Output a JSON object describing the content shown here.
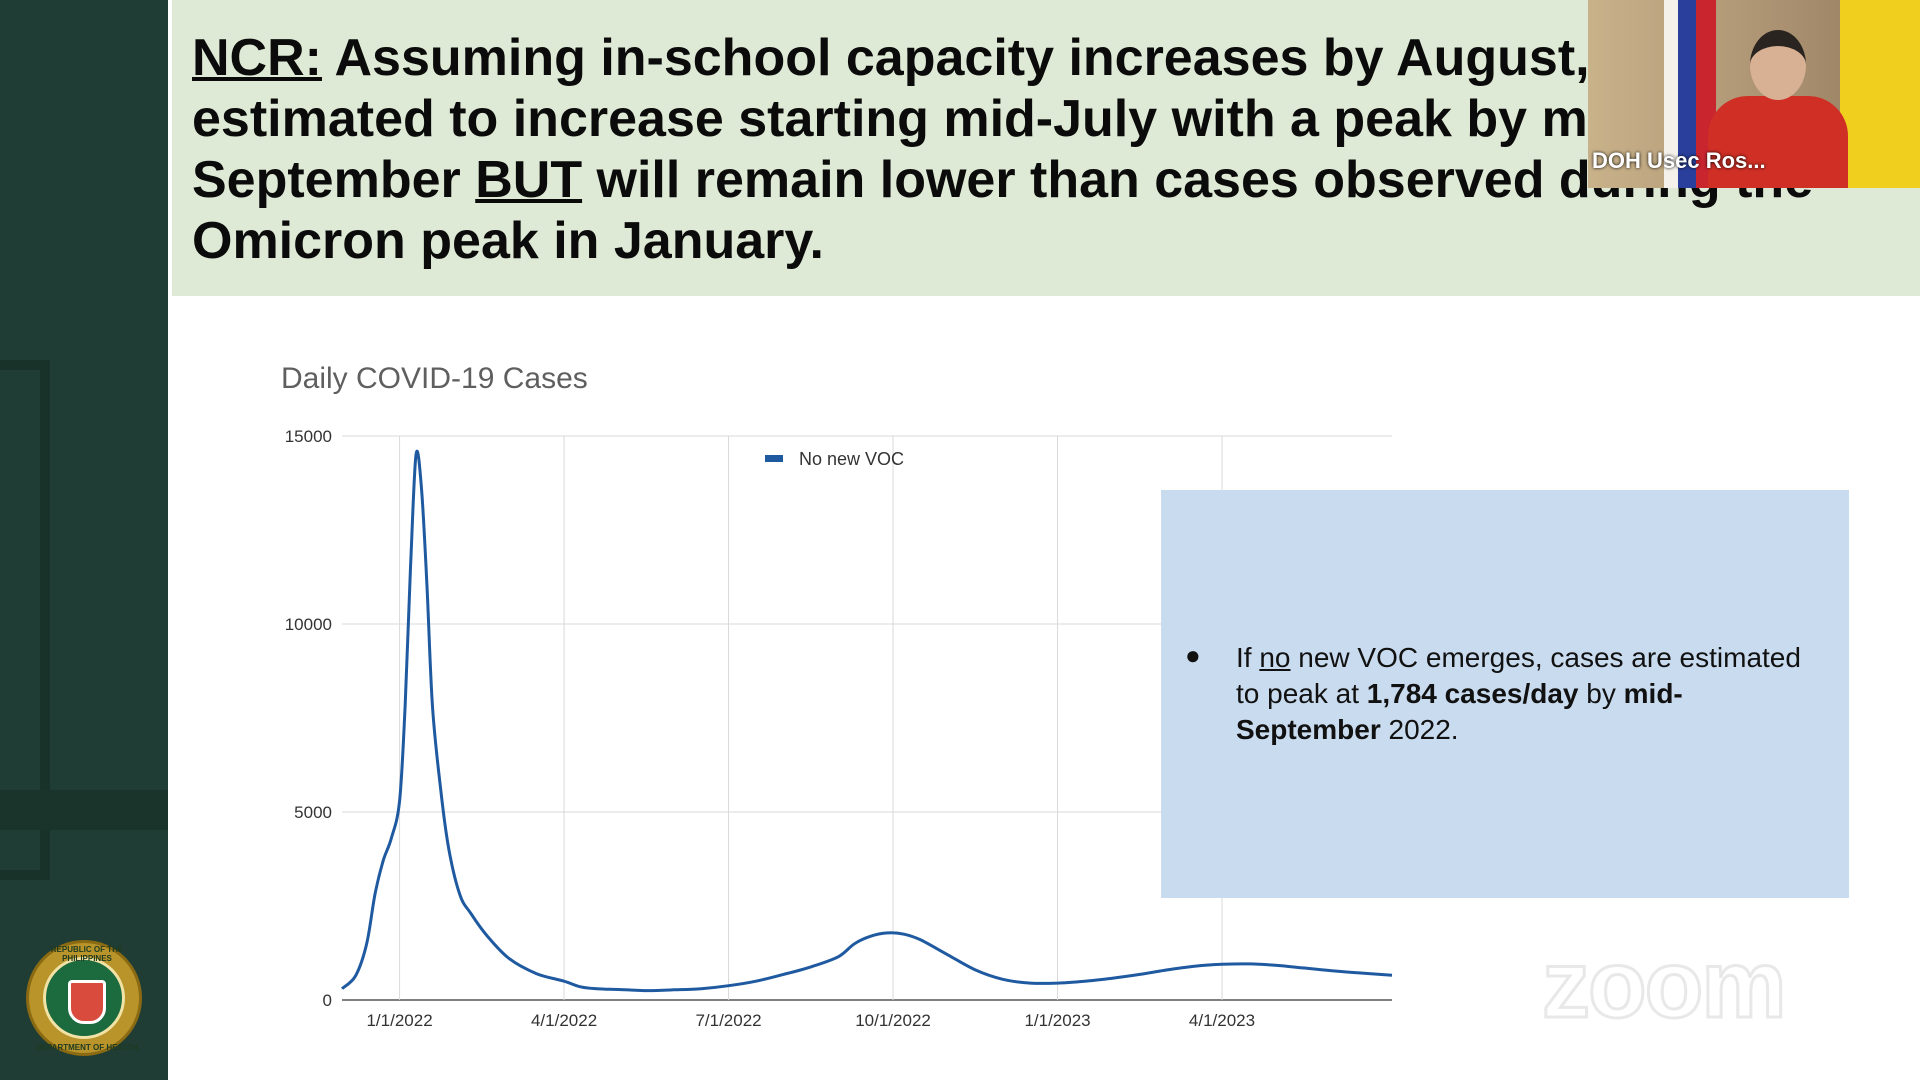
{
  "slide": {
    "headline_prefix": "NCR:",
    "headline_part1": " Assuming in-school capacity increases by August, cases are estimated to increase starting mid-July with a peak by mid-September ",
    "headline_emphasis": "BUT",
    "headline_part2": " will remain lower than cases observed during the Omicron peak in January.",
    "chart_title": "Daily COVID-19 Cases",
    "callout": {
      "bullet": "●",
      "text1": "If ",
      "underlined": "no",
      "text2": " new VOC emerges, cases are estimated to peak at ",
      "bold1": "1,784 cases/day",
      "text3": " by ",
      "bold2": "mid-September",
      "text4": " 2022."
    },
    "seal": {
      "top_text": "REPUBLIC OF THE PHILIPPINES",
      "bottom_text": "DEPARTMENT OF HEALTH"
    }
  },
  "video": {
    "participant_name": "DOH Usec Ros..."
  },
  "watermark": {
    "text": "zoom"
  },
  "colors": {
    "sidebar": "#1f3d34",
    "header_bg": "#deead5",
    "series_line": "#1f5aa0",
    "callout_bg": "#c9dbef",
    "grid": "#d9d9d9"
  },
  "chart_data": {
    "type": "line",
    "title": "Daily COVID-19 Cases",
    "xlabel": "",
    "ylabel": "",
    "ylim": [
      0,
      15000
    ],
    "y_ticks": [
      0,
      5000,
      10000,
      15000
    ],
    "y_tick_labels": [
      "0",
      "5000",
      "10000",
      "15000"
    ],
    "x_ticks": [
      2,
      5,
      8,
      11,
      14,
      17
    ],
    "x_tick_labels": [
      "1/1/2022",
      "4/1/2022",
      "7/1/2022",
      "10/1/2022",
      "1/1/2023",
      "4/1/2023"
    ],
    "xlim": [
      0.95,
      20.1
    ],
    "legend": {
      "position": "top-center",
      "entries": [
        "No new VOC"
      ]
    },
    "grid": true,
    "series": [
      {
        "name": "No new VOC",
        "x": [
          0.95,
          1.2,
          1.4,
          1.55,
          1.7,
          1.85,
          2.0,
          2.1,
          2.2,
          2.3,
          2.4,
          2.5,
          2.6,
          2.75,
          2.9,
          3.1,
          3.3,
          3.6,
          4.0,
          4.5,
          5.0,
          5.3,
          5.6,
          6.0,
          6.5,
          7.0,
          7.5,
          8.0,
          8.5,
          9.0,
          9.5,
          10.0,
          10.3,
          10.6,
          10.9,
          11.2,
          11.5,
          12.0,
          12.5,
          13.0,
          13.5,
          14.0,
          14.5,
          15.0,
          15.5,
          16.0,
          16.5,
          17.0,
          17.5,
          18.0,
          18.5,
          19.0,
          19.5,
          20.1
        ],
        "y": [
          300,
          650,
          1500,
          2800,
          3700,
          4300,
          5300,
          7800,
          11500,
          14500,
          13600,
          11000,
          7800,
          5600,
          4000,
          2800,
          2300,
          1700,
          1100,
          700,
          500,
          350,
          300,
          280,
          250,
          270,
          300,
          380,
          500,
          680,
          880,
          1150,
          1500,
          1700,
          1784,
          1750,
          1600,
          1200,
          800,
          550,
          450,
          450,
          500,
          580,
          680,
          800,
          900,
          950,
          960,
          920,
          850,
          780,
          720,
          660
        ]
      }
    ]
  }
}
